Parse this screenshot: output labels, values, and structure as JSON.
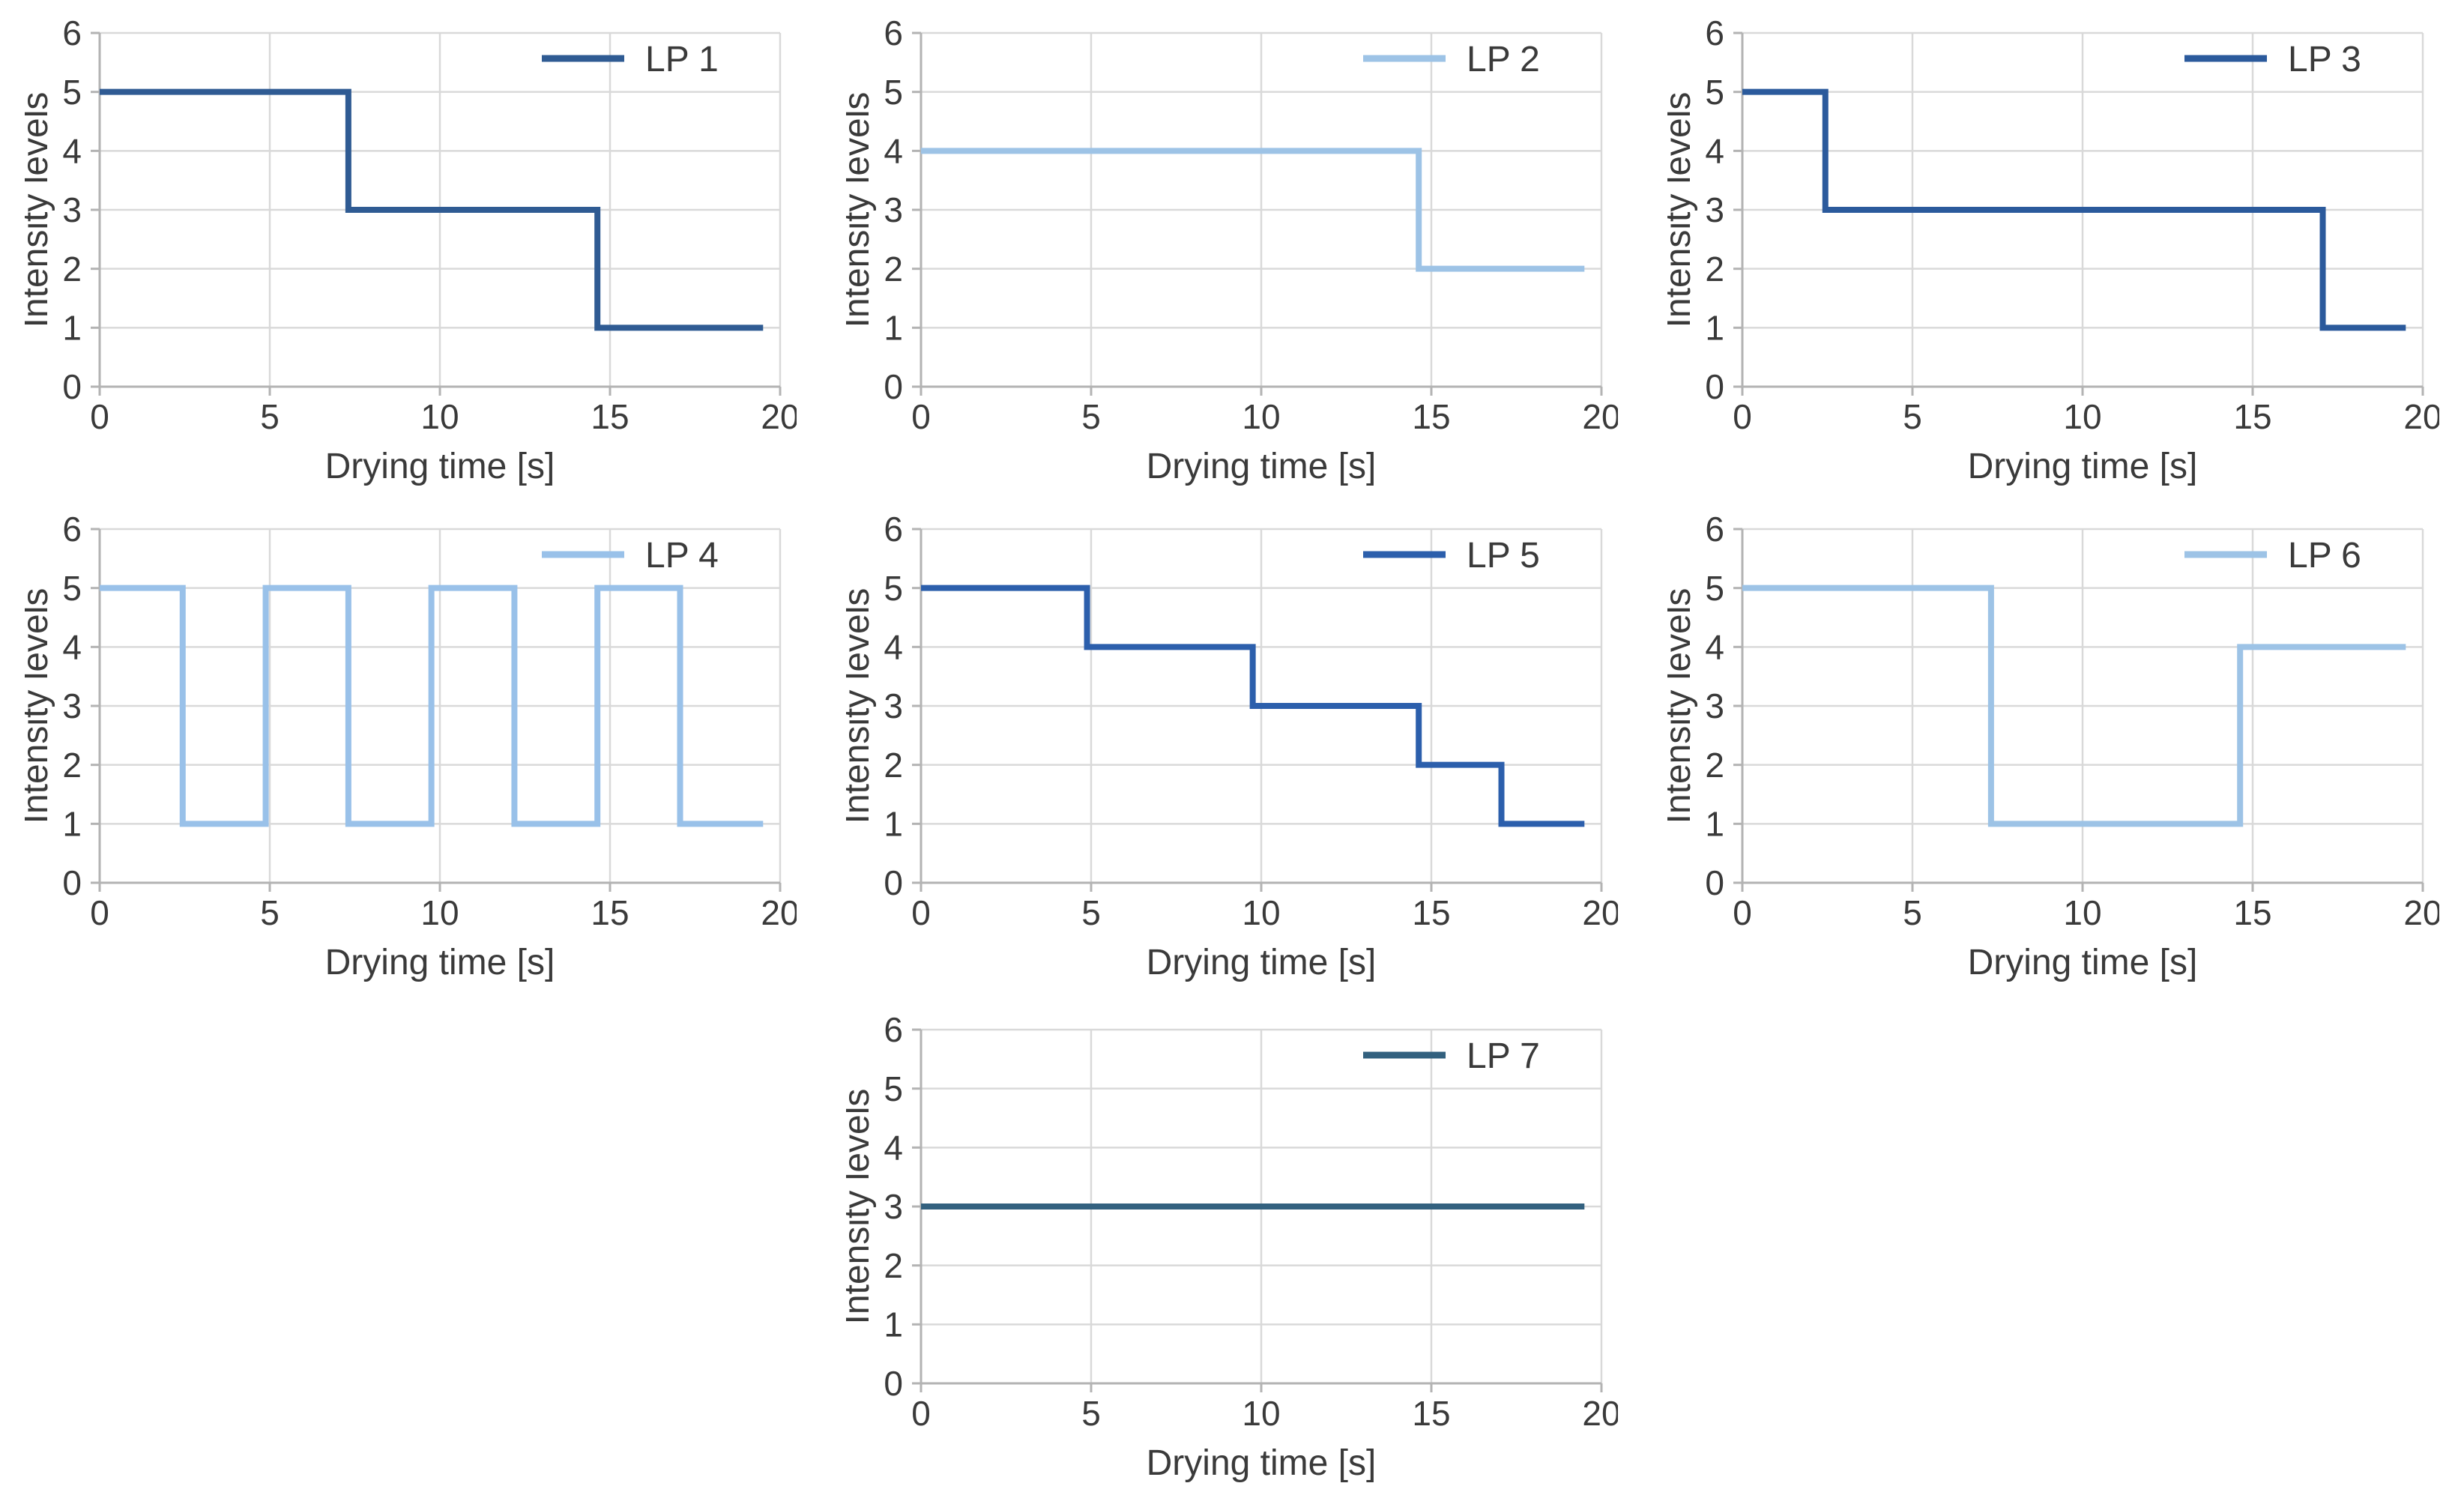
{
  "figure": {
    "background": "#ffffff",
    "text_color": "#3a3a3a",
    "grid_color": "#d9d9d9",
    "axis_color": "#b3b3b3",
    "panel_count": 7
  },
  "shared_axes": {
    "xlabel": "Drying time [s]",
    "ylabel": "Intensity levels",
    "xlim": [
      0,
      20
    ],
    "ylim": [
      0,
      6
    ],
    "xticks": [
      0,
      5,
      10,
      15,
      20
    ],
    "yticks": [
      0,
      1,
      2,
      3,
      4,
      5,
      6
    ],
    "grid": true,
    "legend_position": "top-right"
  },
  "chart_data": [
    {
      "id": "lp-1",
      "type": "line-step",
      "legend": "LP 1",
      "color": "#2f5b93",
      "segments": [
        [
          0,
          7.31,
          5
        ],
        [
          7.31,
          14.63,
          3
        ],
        [
          14.63,
          19.5,
          1
        ]
      ]
    },
    {
      "id": "lp-2",
      "type": "line-step",
      "legend": "LP 2",
      "color": "#9dc3e6",
      "segments": [
        [
          0,
          14.63,
          4
        ],
        [
          14.63,
          19.5,
          2
        ]
      ]
    },
    {
      "id": "lp-3",
      "type": "line-step",
      "legend": "LP 3",
      "color": "#2b5a9c",
      "segments": [
        [
          0,
          2.44,
          5
        ],
        [
          2.44,
          17.06,
          3
        ],
        [
          17.06,
          19.5,
          1
        ]
      ]
    },
    {
      "id": "lp-4",
      "type": "line-step",
      "legend": "LP 4",
      "color": "#99c1e9",
      "segments": [
        [
          0,
          2.44,
          5
        ],
        [
          2.44,
          4.88,
          1
        ],
        [
          4.88,
          7.31,
          5
        ],
        [
          7.31,
          9.75,
          1
        ],
        [
          9.75,
          12.19,
          5
        ],
        [
          12.19,
          14.63,
          1
        ],
        [
          14.63,
          17.06,
          5
        ],
        [
          17.06,
          19.5,
          1
        ]
      ]
    },
    {
      "id": "lp-5",
      "type": "line-step",
      "legend": "LP 5",
      "color": "#2c5fac",
      "segments": [
        [
          0,
          4.88,
          5
        ],
        [
          4.88,
          9.75,
          4
        ],
        [
          9.75,
          14.63,
          3
        ],
        [
          14.63,
          17.06,
          2
        ],
        [
          17.06,
          19.5,
          1
        ]
      ]
    },
    {
      "id": "lp-6",
      "type": "line-step",
      "legend": "LP 6",
      "color": "#9dc3e6",
      "segments": [
        [
          0,
          7.31,
          5
        ],
        [
          7.31,
          14.63,
          1
        ],
        [
          14.63,
          19.5,
          4
        ]
      ]
    },
    {
      "id": "lp-7",
      "type": "line-step",
      "legend": "LP 7",
      "color": "#33617f",
      "segments": [
        [
          0,
          19.5,
          3
        ]
      ]
    }
  ]
}
